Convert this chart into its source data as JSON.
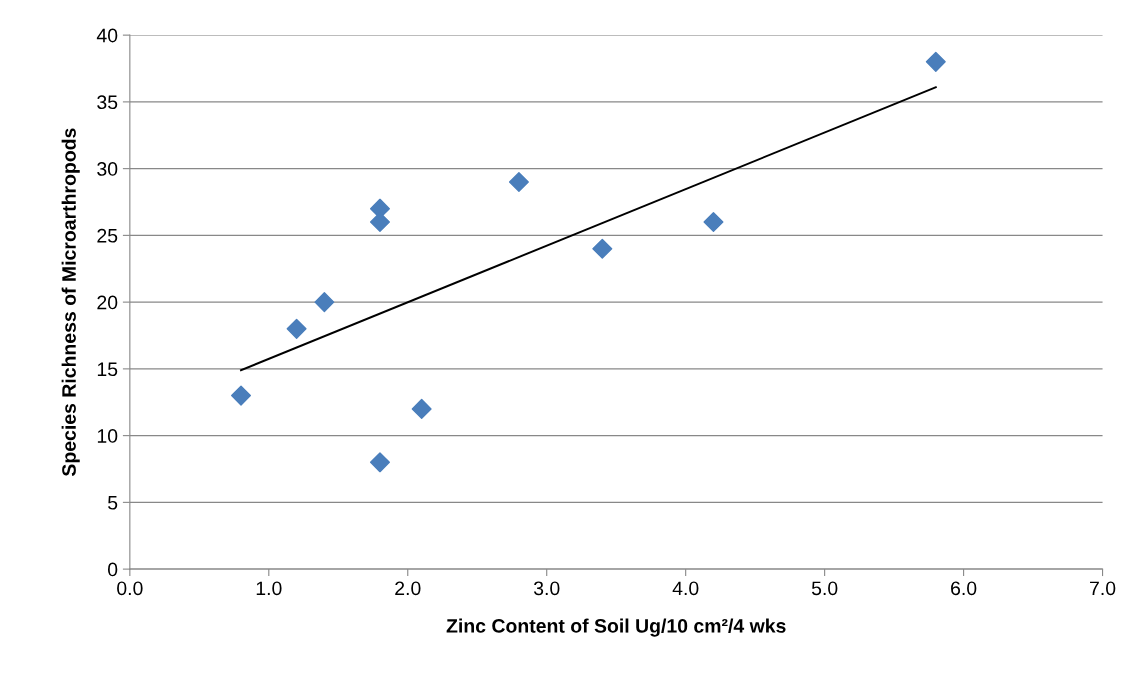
{
  "chart_data": {
    "type": "scatter",
    "xlabel": "Zinc Content of Soil Ug/10 cm²/4 wks",
    "ylabel": "Species Richness of Microarthropods",
    "series": [
      {
        "color": "#4a7ebb",
        "marker": "diamond",
        "x": [
          0.8,
          1.2,
          1.4,
          1.8,
          1.8,
          1.8,
          2.1,
          2.8,
          3.4,
          4.2,
          5.8
        ],
        "values": [
          13,
          18,
          20,
          27,
          26,
          8,
          12,
          29,
          24,
          26,
          38
        ]
      },
      {
        "type": "line",
        "color": "#000000",
        "marker": "none",
        "x": [
          0.8,
          5.8
        ],
        "values": [
          14.9,
          36.1
        ]
      }
    ],
    "xlim": [
      0,
      7
    ],
    "xticks": [
      {
        "value": 0,
        "label": "0.0"
      },
      {
        "value": 1,
        "label": "1.0"
      },
      {
        "value": 2,
        "label": "2.0"
      },
      {
        "value": 3,
        "label": "3.0"
      },
      {
        "value": 4,
        "label": "4.0"
      },
      {
        "value": 5,
        "label": "5.0"
      },
      {
        "value": 6,
        "label": "6.0"
      },
      {
        "value": 7,
        "label": "7.0"
      }
    ],
    "ylim": [
      0,
      40
    ],
    "yticks": [
      0,
      5,
      10,
      15,
      20,
      25,
      30,
      35,
      40
    ],
    "grid": "y"
  }
}
